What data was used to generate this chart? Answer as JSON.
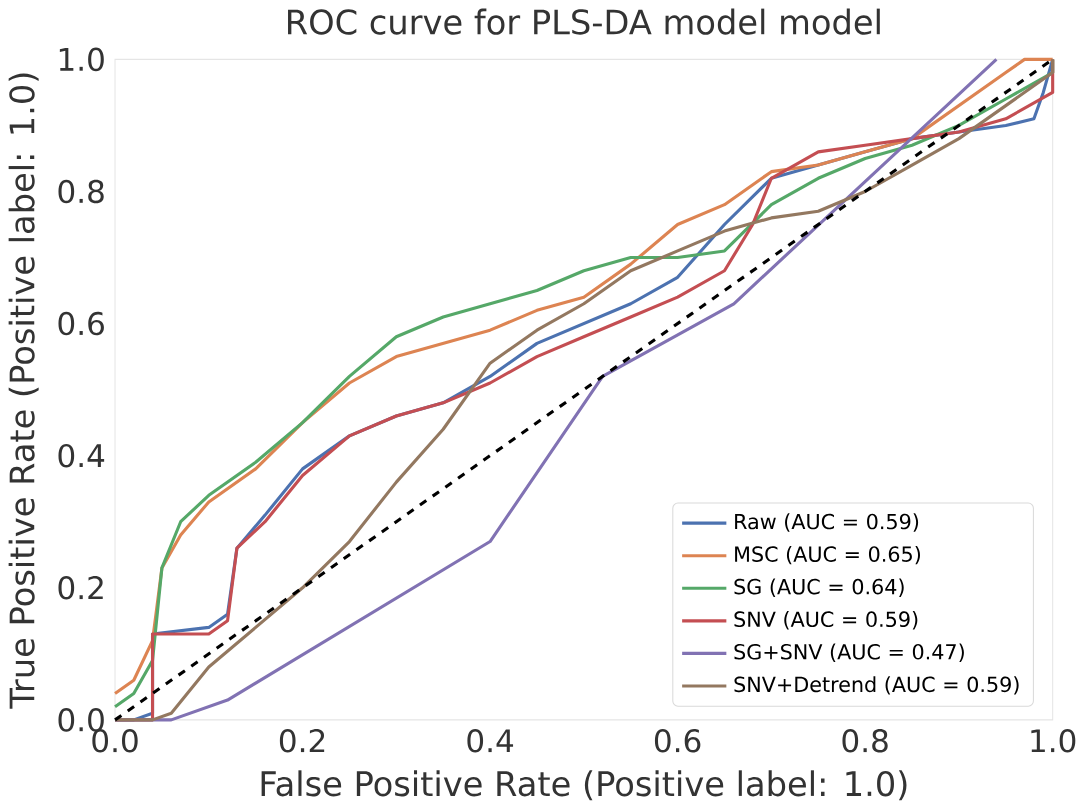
{
  "chart_data": {
    "type": "line",
    "title": "ROC curve for PLS-DA model model",
    "xlabel": "False Positive Rate (Positive label: 1.0)",
    "ylabel": "True Positive Rate (Positive label: 1.0)",
    "xlim": [
      0,
      1
    ],
    "ylim": [
      0,
      1
    ],
    "xticks": [
      {
        "value": 0,
        "label": "0.0"
      },
      0.2,
      0.4,
      0.6,
      0.8,
      {
        "value": 1,
        "label": "1.0"
      }
    ],
    "yticks": [
      {
        "value": 0,
        "label": "0.0"
      },
      0.2,
      0.4,
      0.6,
      0.8,
      {
        "value": 1,
        "label": "1.0"
      }
    ],
    "grid": false,
    "legend": "bottom right",
    "line_style": "solid",
    "series": [
      {
        "name": "Raw (AUC = 0.59)",
        "color": "#4c72b0",
        "x": [
          0,
          0.02,
          0.04,
          0.04,
          0.1,
          0.12,
          0.13,
          0.16,
          0.2,
          0.25,
          0.3,
          0.35,
          0.4,
          0.45,
          0.5,
          0.55,
          0.6,
          0.65,
          0.7,
          0.75,
          0.8,
          0.85,
          0.9,
          0.95,
          0.98,
          0.99,
          1
        ],
        "values": [
          0,
          0,
          0.01,
          0.13,
          0.14,
          0.16,
          0.26,
          0.31,
          0.38,
          0.43,
          0.46,
          0.48,
          0.52,
          0.57,
          0.6,
          0.63,
          0.67,
          0.75,
          0.82,
          0.84,
          0.86,
          0.88,
          0.89,
          0.9,
          0.91,
          0.95,
          1
        ]
      },
      {
        "name": "MSC (AUC = 0.65)",
        "color": "#dd8452",
        "x": [
          0,
          0.02,
          0.04,
          0.05,
          0.07,
          0.1,
          0.15,
          0.2,
          0.25,
          0.3,
          0.35,
          0.4,
          0.45,
          0.5,
          0.55,
          0.6,
          0.65,
          0.7,
          0.75,
          0.8,
          0.85,
          0.9,
          0.95,
          0.97,
          1
        ],
        "values": [
          0.04,
          0.06,
          0.12,
          0.23,
          0.28,
          0.33,
          0.38,
          0.45,
          0.51,
          0.55,
          0.57,
          0.59,
          0.62,
          0.64,
          0.69,
          0.75,
          0.78,
          0.83,
          0.84,
          0.86,
          0.88,
          0.93,
          0.98,
          1,
          1
        ]
      },
      {
        "name": "SG (AUC = 0.64)",
        "color": "#55a868",
        "x": [
          0,
          0.02,
          0.04,
          0.05,
          0.07,
          0.1,
          0.15,
          0.2,
          0.25,
          0.3,
          0.35,
          0.4,
          0.45,
          0.5,
          0.55,
          0.6,
          0.65,
          0.7,
          0.75,
          0.8,
          0.85,
          0.9,
          0.95,
          1,
          1
        ],
        "values": [
          0.02,
          0.04,
          0.09,
          0.23,
          0.3,
          0.34,
          0.39,
          0.45,
          0.52,
          0.58,
          0.61,
          0.63,
          0.65,
          0.68,
          0.7,
          0.7,
          0.71,
          0.78,
          0.82,
          0.85,
          0.87,
          0.9,
          0.94,
          0.98,
          1
        ]
      },
      {
        "name": "SNV (AUC = 0.59)",
        "color": "#c44e52",
        "x": [
          0,
          0.04,
          0.04,
          0.1,
          0.12,
          0.13,
          0.16,
          0.2,
          0.25,
          0.3,
          0.35,
          0.4,
          0.45,
          0.5,
          0.55,
          0.6,
          0.65,
          0.68,
          0.7,
          0.75,
          0.8,
          0.85,
          0.9,
          0.95,
          1,
          1
        ],
        "values": [
          0,
          0,
          0.13,
          0.13,
          0.15,
          0.26,
          0.3,
          0.37,
          0.43,
          0.46,
          0.48,
          0.51,
          0.55,
          0.58,
          0.61,
          0.64,
          0.68,
          0.75,
          0.82,
          0.86,
          0.87,
          0.88,
          0.89,
          0.91,
          0.95,
          1
        ]
      },
      {
        "name": "SG+SNV (AUC = 0.47)",
        "color": "#8172b3",
        "x": [
          0,
          0.06,
          0.12,
          0.4,
          0.52,
          0.66,
          0.94
        ],
        "values": [
          0,
          0,
          0.03,
          0.27,
          0.52,
          0.63,
          1
        ]
      },
      {
        "name": "SNV+Detrend (AUC = 0.59)",
        "color": "#937860",
        "x": [
          0,
          0.04,
          0.06,
          0.1,
          0.15,
          0.2,
          0.25,
          0.3,
          0.35,
          0.4,
          0.45,
          0.5,
          0.55,
          0.6,
          0.65,
          0.7,
          0.75,
          0.8,
          0.85,
          0.9,
          0.95,
          1,
          1
        ],
        "values": [
          0,
          0,
          0.01,
          0.08,
          0.14,
          0.2,
          0.27,
          0.36,
          0.44,
          0.54,
          0.59,
          0.63,
          0.68,
          0.71,
          0.74,
          0.76,
          0.77,
          0.8,
          0.84,
          0.88,
          0.93,
          0.98,
          1
        ]
      },
      {
        "color": "#000000",
        "line_style": "dashed",
        "x": [
          0,
          1
        ],
        "values": [
          0,
          1
        ]
      }
    ]
  }
}
